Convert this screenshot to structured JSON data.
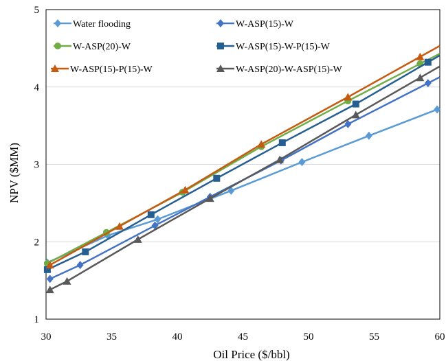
{
  "chart_data": {
    "type": "line",
    "xlabel": "Oil Price ($/bbl)",
    "ylabel": "NPV ($MM)",
    "xlim": [
      30,
      60
    ],
    "ylim": [
      1,
      5
    ],
    "xticks": [
      30,
      35,
      40,
      45,
      50,
      55,
      60
    ],
    "yticks": [
      1,
      2,
      3,
      4,
      5
    ],
    "grid": "horizontal",
    "legend_position": "top",
    "series": [
      {
        "name": "Water flooding",
        "color": "#5b9bd5",
        "marker": "diamond",
        "x": [
          30.1,
          34.7,
          38.5,
          44.1,
          49.5,
          54.6,
          59.8
        ],
        "y": [
          1.73,
          2.08,
          2.29,
          2.66,
          3.03,
          3.37,
          3.71
        ]
      },
      {
        "name": "W-ASP(15)-W",
        "color": "#4472c4",
        "marker": "diamond",
        "x": [
          30.3,
          32.6,
          38.3,
          42.5,
          47.9,
          53.0,
          59.1
        ],
        "y": [
          1.52,
          1.7,
          2.21,
          2.58,
          3.05,
          3.52,
          4.05
        ]
      },
      {
        "name": "W-ASP(20)-W",
        "color": "#70ad47",
        "marker": "circle",
        "x": [
          30.1,
          34.6,
          40.4,
          46.4,
          53.0,
          58.5
        ],
        "y": [
          1.72,
          2.12,
          2.64,
          3.23,
          3.82,
          4.3
        ]
      },
      {
        "name": "W-ASP(15)-W-P(15)-W",
        "color": "#255e91",
        "marker": "square",
        "x": [
          30.1,
          33.0,
          38.0,
          43.0,
          48.0,
          53.6,
          59.1
        ],
        "y": [
          1.64,
          1.87,
          2.35,
          2.82,
          3.28,
          3.78,
          4.32
        ]
      },
      {
        "name": "W-ASP(15)-P(15)-W",
        "color": "#c55a11",
        "marker": "triangle",
        "x": [
          30.3,
          35.6,
          40.6,
          46.4,
          53.0,
          58.5
        ],
        "y": [
          1.7,
          2.2,
          2.67,
          3.26,
          3.87,
          4.39
        ]
      },
      {
        "name": "W-ASP(20)-W-ASP(15)-W",
        "color": "#595959",
        "marker": "triangle",
        "x": [
          30.3,
          31.6,
          37.0,
          42.5,
          47.8,
          53.6,
          58.5
        ],
        "y": [
          1.38,
          1.49,
          2.03,
          2.56,
          3.06,
          3.64,
          4.12
        ]
      }
    ]
  }
}
